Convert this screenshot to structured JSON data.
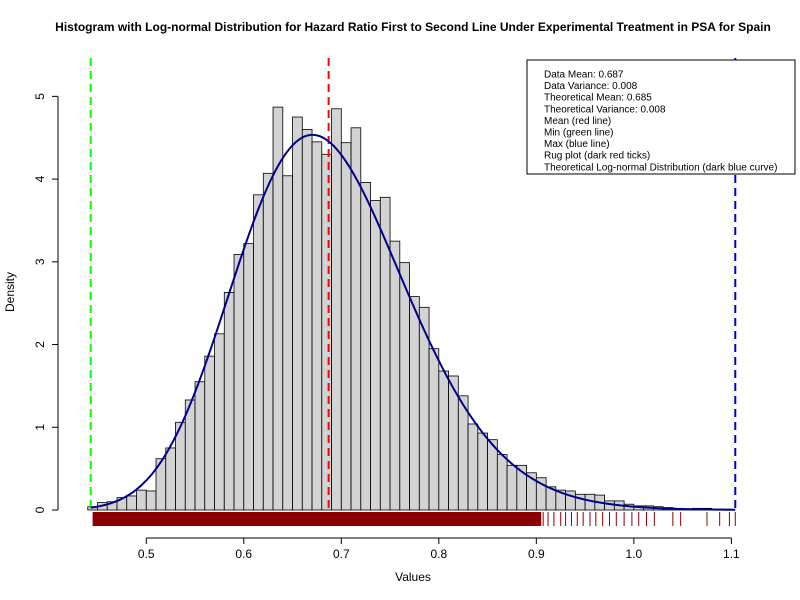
{
  "chart_data": {
    "type": "bar",
    "title": "Histogram with Log-normal Distribution for Hazard Ratio First to Second Line Under Experimental Treatment in PSA for Spain",
    "xlabel": "Values",
    "ylabel": "Density",
    "xlim": [
      0.43,
      1.115
    ],
    "ylim": [
      0,
      5.5
    ],
    "x_ticks": [
      0.5,
      0.6,
      0.7,
      0.8,
      0.9,
      1.0,
      1.1
    ],
    "x_tick_labels": [
      "0.5",
      "0.6",
      "0.7",
      "0.8",
      "0.9",
      "1.0",
      "1.1"
    ],
    "y_ticks": [
      0,
      1,
      2,
      3,
      4,
      5
    ],
    "y_tick_labels": [
      "0",
      "1",
      "2",
      "3",
      "4",
      "5"
    ],
    "grid": false,
    "bin_width": 0.01,
    "bin_start": 0.44,
    "histogram_values": [
      0.04,
      0.09,
      0.1,
      0.15,
      0.17,
      0.24,
      0.23,
      0.62,
      0.75,
      1.06,
      1.33,
      1.55,
      1.86,
      2.13,
      2.63,
      3.09,
      3.22,
      3.81,
      4.07,
      4.87,
      4.04,
      4.75,
      4.6,
      4.45,
      4.3,
      4.85,
      4.44,
      4.62,
      3.96,
      3.74,
      3.78,
      3.25,
      2.99,
      2.58,
      2.45,
      1.95,
      1.68,
      1.62,
      1.38,
      1.04,
      0.93,
      0.85,
      0.67,
      0.54,
      0.54,
      0.45,
      0.39,
      0.28,
      0.24,
      0.23,
      0.19,
      0.19,
      0.18,
      0.11,
      0.11,
      0.07,
      0.05,
      0.05,
      0.04,
      0.03,
      0.02,
      0.01,
      0.02,
      0.02,
      0.01,
      0.01
    ],
    "lognormal_curve": {
      "name": "Theoretical Log-normal Distribution",
      "color": "#00008B",
      "meanlog": -0.3829,
      "sdlog": 0.1301
    },
    "vertical_lines": [
      {
        "name": "Mean",
        "value": 0.687,
        "color": "#FF0000"
      },
      {
        "name": "Min",
        "value": 0.443,
        "color": "#00FF00"
      },
      {
        "name": "Max",
        "value": 1.104,
        "color": "#0000CD"
      }
    ],
    "rug": {
      "color": "#8B0000",
      "dense_range": [
        0.445,
        0.905
      ],
      "sparse_values": [
        0.907,
        0.912,
        0.918,
        0.925,
        0.93,
        0.936,
        0.942,
        0.948,
        0.955,
        0.961,
        0.968,
        0.975,
        0.982,
        0.99,
        0.998,
        1.005,
        1.013,
        1.021,
        1.04,
        1.048,
        1.075,
        1.088,
        1.098,
        1.104
      ]
    },
    "legend": {
      "placement": "top-right",
      "lines": [
        "Data Mean:  0.687",
        "Data Variance:  0.008",
        "Theoretical Mean:  0.685",
        "Theoretical Variance:  0.008",
        "Mean (red line)",
        "Min (green line)",
        "Max (blue line)",
        "Rug plot (dark red ticks)",
        "Theoretical Log-normal Distribution (dark blue curve)"
      ]
    },
    "colors": {
      "bar_fill": "#D3D3D3",
      "bar_stroke": "#000000"
    }
  }
}
